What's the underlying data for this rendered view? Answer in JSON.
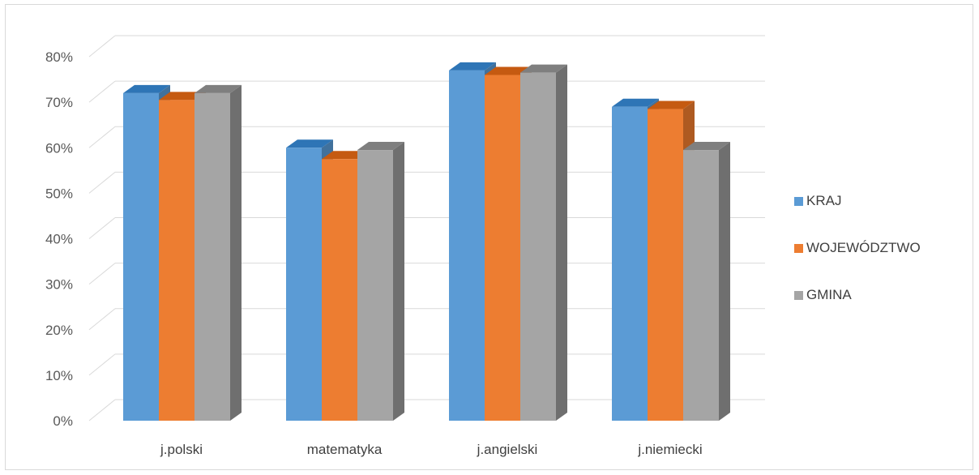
{
  "chart_data": {
    "type": "bar",
    "categories": [
      "j.polski",
      "matematyka",
      "j.angielski",
      "j.niemiecki"
    ],
    "series": [
      {
        "name": "KRAJ",
        "values": [
          72,
          60,
          77,
          69
        ]
      },
      {
        "name": "WOJEWÓDZTWO",
        "values": [
          70.5,
          57.5,
          76,
          68.5
        ]
      },
      {
        "name": "GMINA",
        "values": [
          72,
          59.5,
          76.5,
          59.5
        ]
      }
    ],
    "title": "",
    "xlabel": "",
    "ylabel": "",
    "ylim": [
      0,
      80
    ],
    "yticks": [
      "0%",
      "10%",
      "20%",
      "30%",
      "40%",
      "50%",
      "60%",
      "70%",
      "80%"
    ],
    "grid": true,
    "legend_position": "right",
    "colors": {
      "KRAJ": {
        "face": "#5b9bd5",
        "side": "#41719c",
        "top": "#2e75b6"
      },
      "WOJEWÓDZTWO": {
        "face": "#ed7d31",
        "side": "#ae5a21",
        "top": "#c55a11"
      },
      "GMINA": {
        "face": "#a5a5a5",
        "side": "#6f6f6f",
        "top": "#7f7f7f"
      },
      "grid": "#d9d9d9"
    }
  }
}
